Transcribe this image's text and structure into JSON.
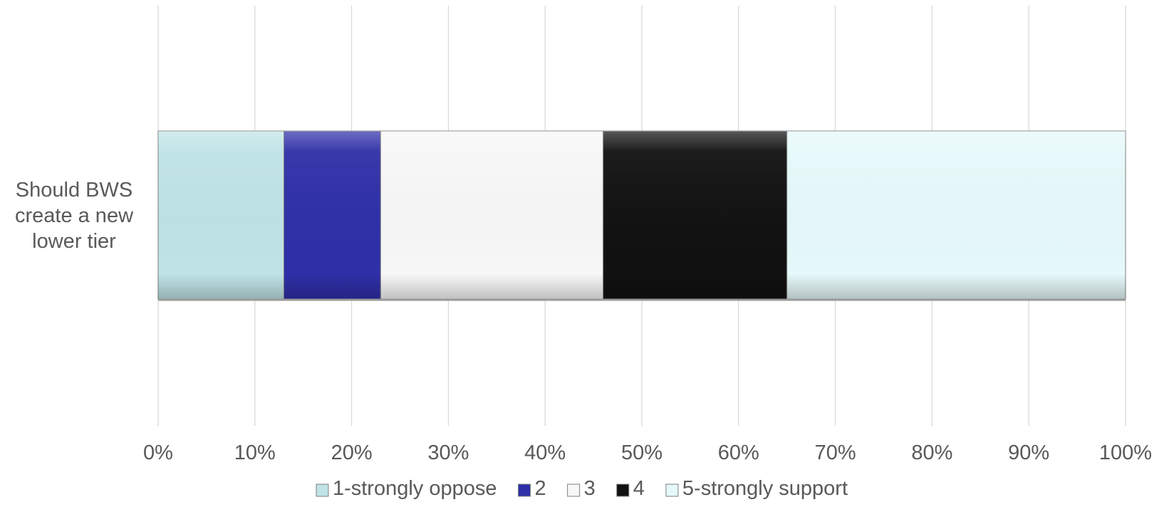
{
  "chart_data": {
    "type": "bar",
    "orientation": "horizontal",
    "stacked": "percent",
    "categories": [
      "Should BWS create a new lower tier"
    ],
    "series": [
      {
        "name": "1-strongly oppose",
        "values": [
          13
        ],
        "color": "#bfe3e6"
      },
      {
        "name": "2",
        "values": [
          10
        ],
        "color": "#2f2fa8"
      },
      {
        "name": "3",
        "values": [
          23
        ],
        "color": "#f7f7f7"
      },
      {
        "name": "4",
        "values": [
          19
        ],
        "color": "#111111"
      },
      {
        "name": "5-strongly support",
        "values": [
          35
        ],
        "color": "#e6f9fa"
      }
    ],
    "x_ticks": [
      "0%",
      "10%",
      "20%",
      "30%",
      "40%",
      "50%",
      "60%",
      "70%",
      "80%",
      "90%",
      "100%"
    ],
    "xlim": [
      0,
      100
    ],
    "grid": true,
    "legend_position": "bottom",
    "title": "",
    "xlabel": "",
    "ylabel": ""
  }
}
